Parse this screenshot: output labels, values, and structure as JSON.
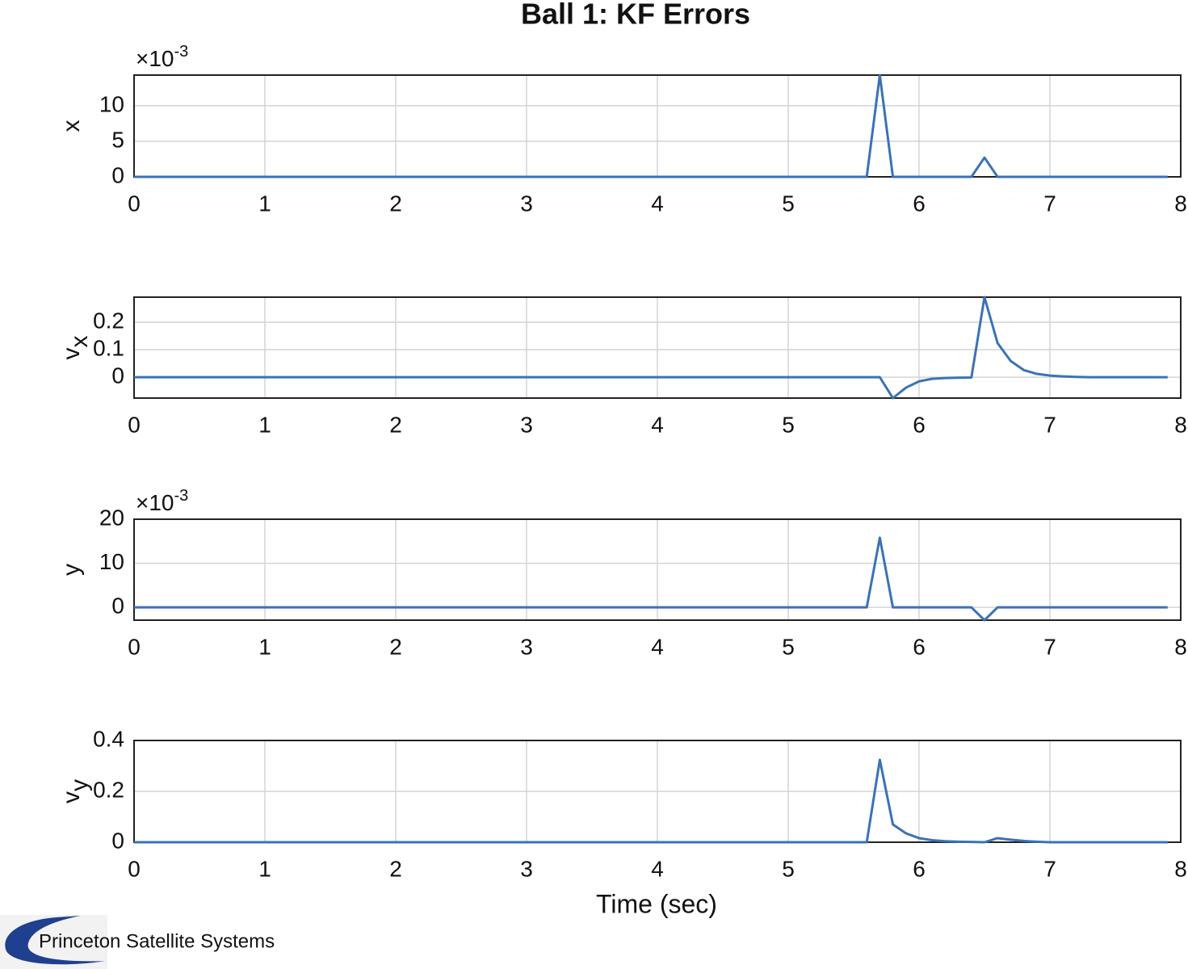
{
  "title": "Ball 1: KF Errors",
  "logo": "Princeton Satellite Systems",
  "chart_data": [
    {
      "type": "line",
      "ylabel": {
        "base": "x"
      },
      "multiplier": {
        "base": "×10",
        "exponent": "-3"
      },
      "x": [
        0,
        5.6,
        5.7,
        5.8,
        6.4,
        6.5,
        6.6,
        7.9
      ],
      "series": [
        {
          "name": "x",
          "color": "#3b72b5",
          "values": [
            0,
            0,
            14.3,
            0,
            0,
            2.7,
            0,
            0
          ]
        }
      ],
      "xlim": [
        0,
        8
      ],
      "xticks": [
        0,
        1,
        2,
        3,
        4,
        5,
        6,
        7,
        8
      ],
      "ylim": [
        0,
        14.3
      ],
      "yticks": [
        0,
        5,
        10
      ],
      "grid": true
    },
    {
      "type": "line",
      "ylabel": {
        "base": "v",
        "sub": "x"
      },
      "x": [
        0,
        5.7,
        5.8,
        5.9,
        6.0,
        6.1,
        6.2,
        6.3,
        6.4,
        6.5,
        6.6,
        6.7,
        6.8,
        6.9,
        7.0,
        7.1,
        7.2,
        7.3,
        7.9
      ],
      "series": [
        {
          "name": "vx",
          "color": "#3b72b5",
          "values": [
            0,
            0,
            -0.076,
            -0.038,
            -0.015,
            -0.006,
            -0.003,
            -0.002,
            -0.001,
            0.291,
            0.124,
            0.059,
            0.026,
            0.012,
            0.006,
            0.003,
            0.001,
            0,
            0
          ]
        }
      ],
      "xlim": [
        0,
        8
      ],
      "xticks": [
        0,
        1,
        2,
        3,
        4,
        5,
        6,
        7,
        8
      ],
      "ylim": [
        -0.076,
        0.291
      ],
      "yticks": [
        0,
        0.1,
        0.2
      ],
      "grid": true
    },
    {
      "type": "line",
      "ylabel": {
        "base": "y"
      },
      "multiplier": {
        "base": "×10",
        "exponent": "-3"
      },
      "x": [
        0,
        5.6,
        5.7,
        5.8,
        6.4,
        6.5,
        6.6,
        7.9
      ],
      "series": [
        {
          "name": "y",
          "color": "#3b72b5",
          "values": [
            0,
            0,
            15.8,
            0,
            0,
            -2.9,
            0,
            0
          ]
        }
      ],
      "xlim": [
        0,
        8
      ],
      "xticks": [
        0,
        1,
        2,
        3,
        4,
        5,
        6,
        7,
        8
      ],
      "ylim": [
        -2.9,
        20
      ],
      "yticks": [
        0,
        10,
        20
      ],
      "grid": true
    },
    {
      "type": "line",
      "ylabel": {
        "base": "v",
        "sub": "y"
      },
      "xlabel": "Time (sec)",
      "x": [
        0,
        5.6,
        5.7,
        5.8,
        5.9,
        6.0,
        6.1,
        6.2,
        6.3,
        6.4,
        6.5,
        6.6,
        6.7,
        6.8,
        6.9,
        7.0,
        7.9
      ],
      "series": [
        {
          "name": "vy",
          "color": "#3b72b5",
          "values": [
            0,
            0,
            0.324,
            0.07,
            0.035,
            0.016,
            0.008,
            0.004,
            0.002,
            0.001,
            0,
            0.016,
            0.01,
            0.005,
            0.002,
            0,
            0
          ]
        }
      ],
      "xlim": [
        0,
        8
      ],
      "xticks": [
        0,
        1,
        2,
        3,
        4,
        5,
        6,
        7,
        8
      ],
      "ylim": [
        0,
        0.4
      ],
      "yticks": [
        0,
        0.2,
        0.4
      ],
      "grid": true
    }
  ]
}
